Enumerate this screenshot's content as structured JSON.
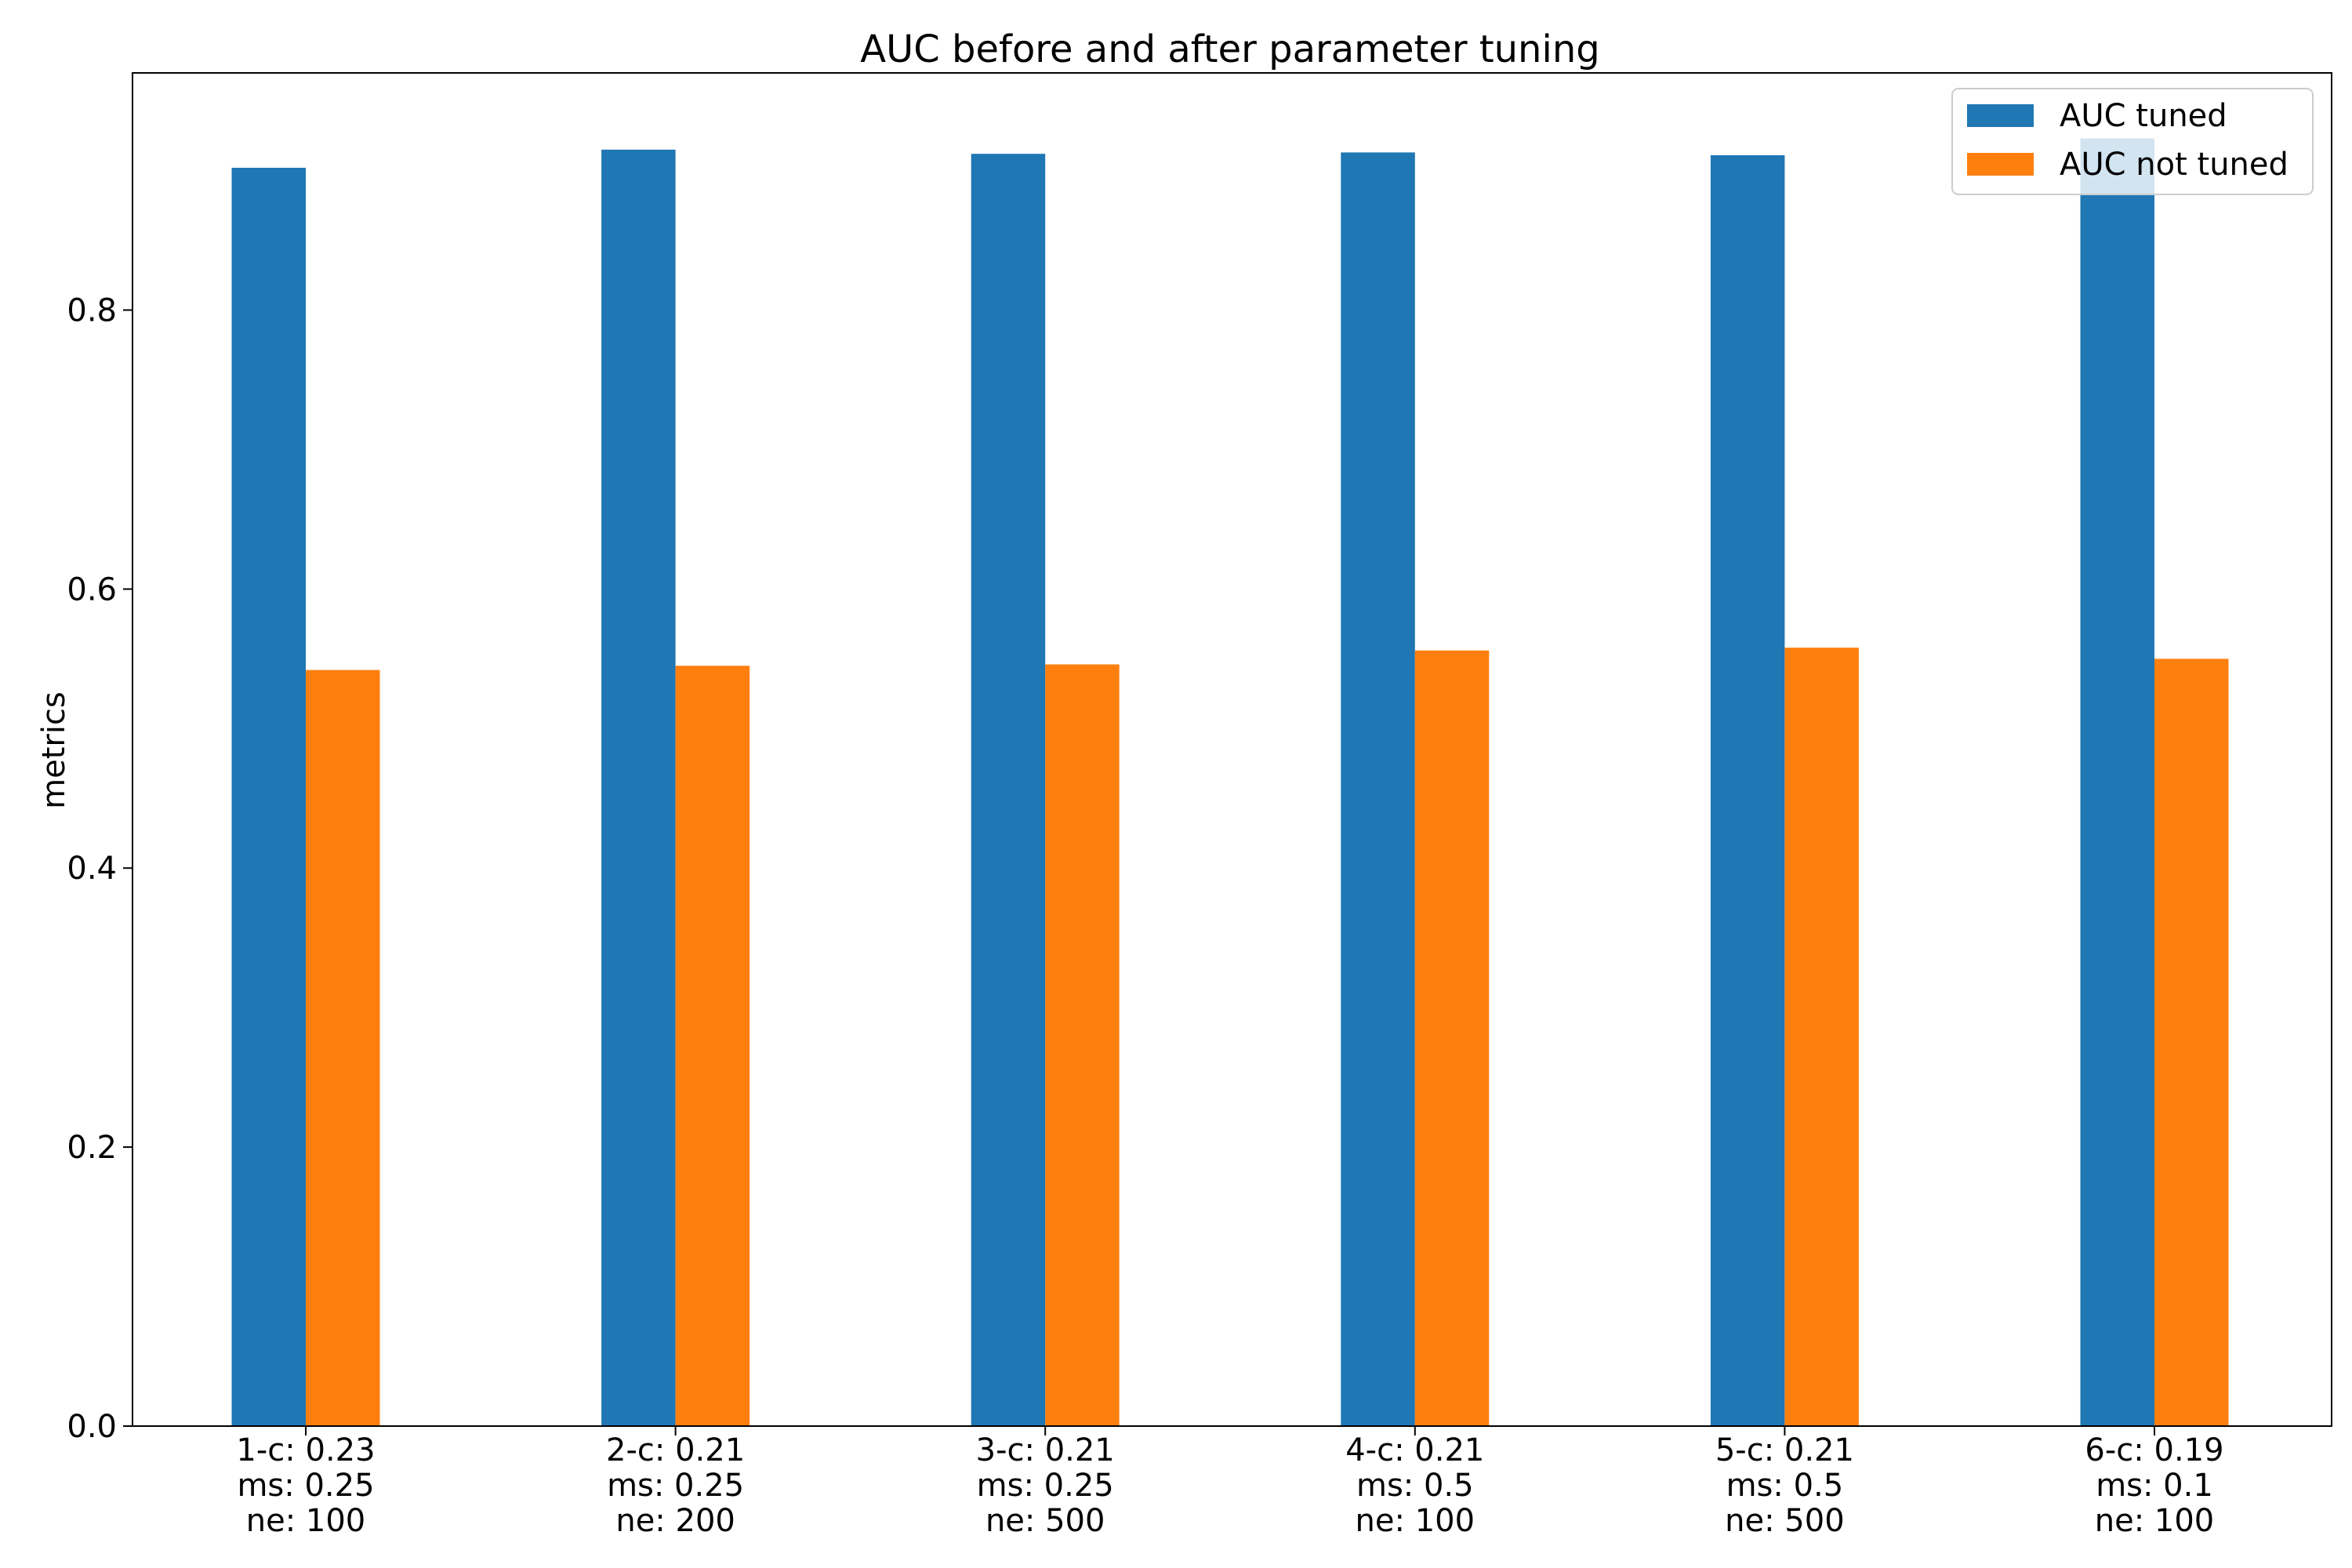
{
  "chart_data": {
    "type": "bar",
    "title": "AUC before and after parameter tuning",
    "xlabel": "",
    "ylabel": "metrics",
    "ylim": [
      0,
      0.97
    ],
    "yticks": [
      0.0,
      0.2,
      0.4,
      0.6,
      0.8
    ],
    "ytick_labels": [
      "0.0",
      "0.2",
      "0.4",
      "0.6",
      "0.8"
    ],
    "grid": false,
    "legend_position": "top-right",
    "categories": [
      [
        "1-c: 0.23",
        "ms: 0.25",
        "ne: 100"
      ],
      [
        "2-c: 0.21",
        "ms: 0.25",
        "ne: 200"
      ],
      [
        "3-c: 0.21",
        "ms: 0.25",
        "ne: 500"
      ],
      [
        "4-c: 0.21",
        "ms: 0.5",
        "ne: 100"
      ],
      [
        "5-c: 0.21",
        "ms: 0.5",
        "ne: 500"
      ],
      [
        "6-c: 0.19",
        "ms: 0.1",
        "ne: 100"
      ]
    ],
    "series": [
      {
        "name": "AUC tuned",
        "color": "#1f77b4",
        "values": [
          0.902,
          0.915,
          0.912,
          0.913,
          0.911,
          0.923
        ]
      },
      {
        "name": "AUC not tuned",
        "color": "#ff7f0e",
        "values": [
          0.542,
          0.545,
          0.546,
          0.556,
          0.558,
          0.55
        ]
      }
    ]
  }
}
